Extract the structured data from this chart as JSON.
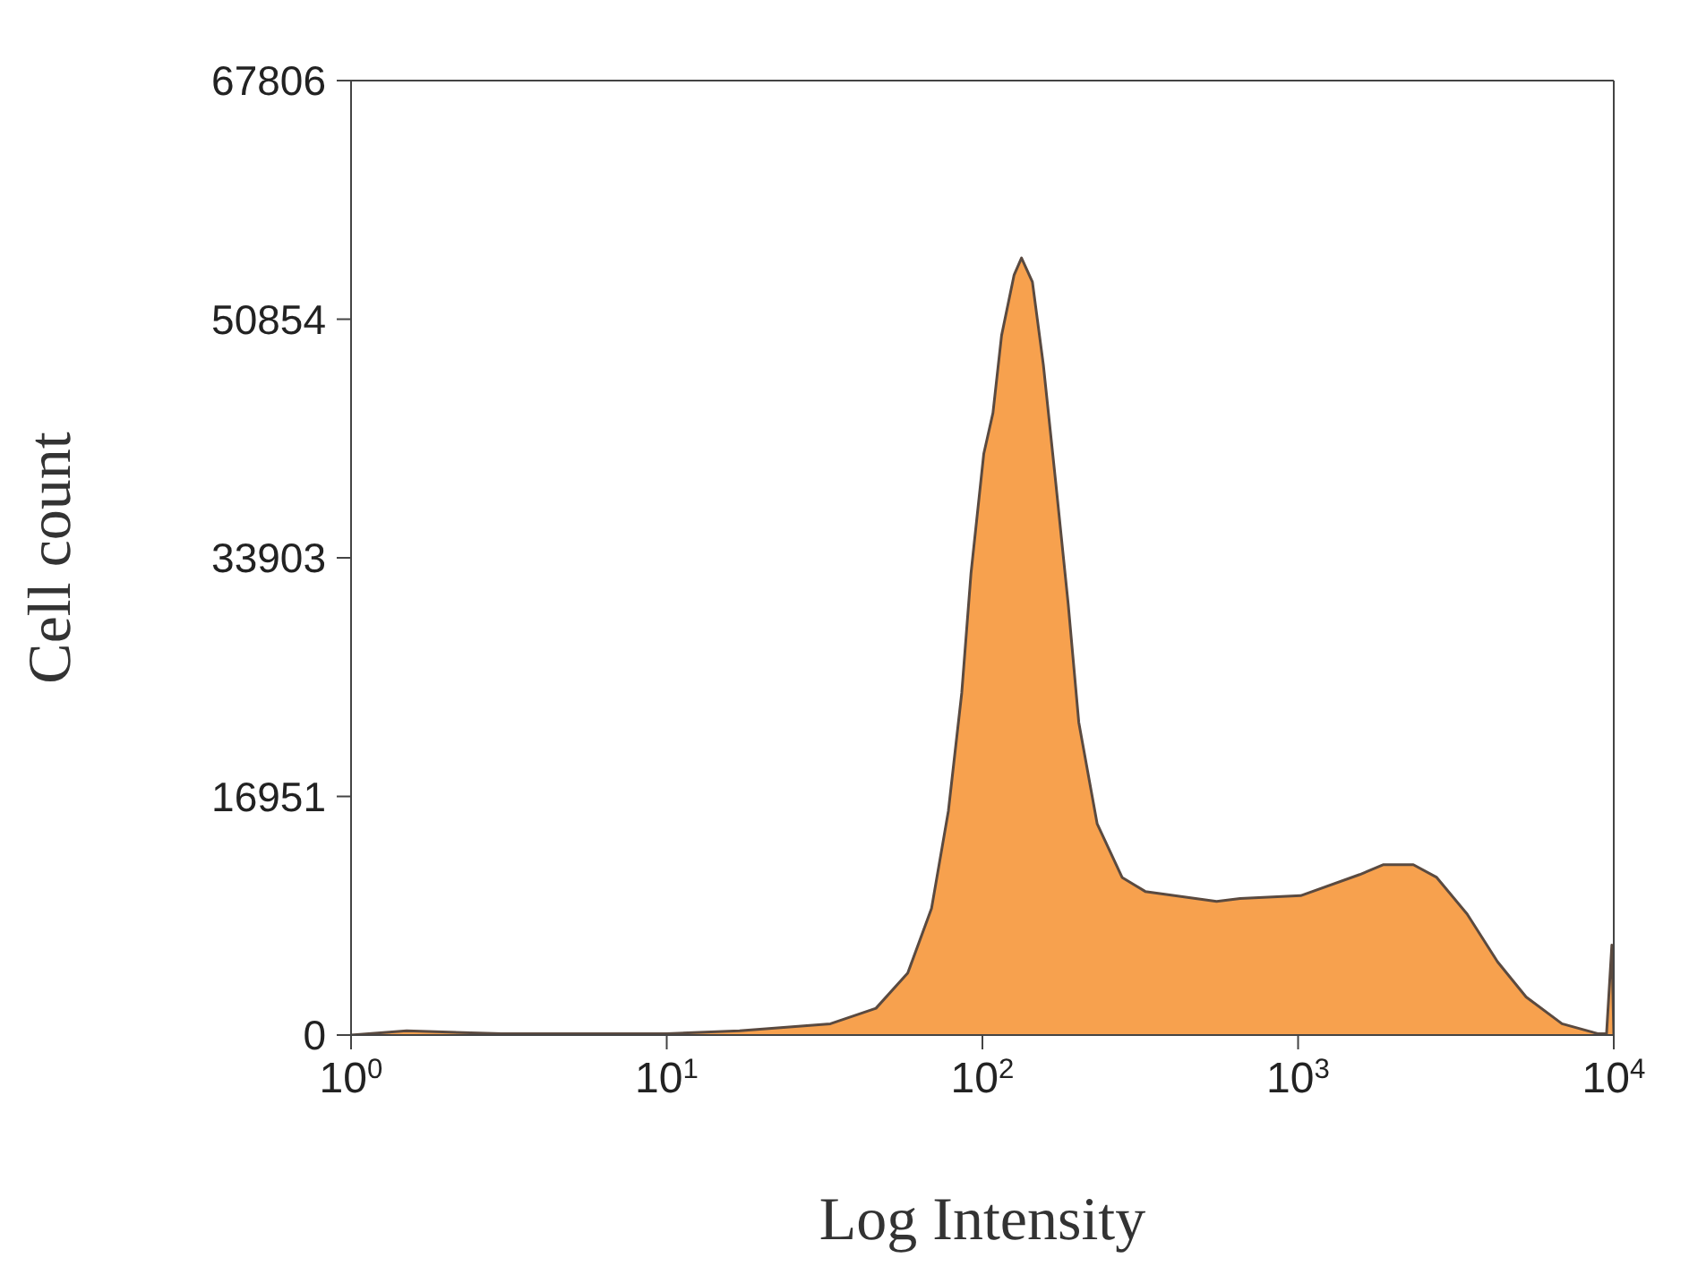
{
  "chart_data": {
    "type": "area",
    "xlabel": "Log Intensity",
    "ylabel": "Cell count",
    "log": "x",
    "marker": "none",
    "xlim": [
      1,
      10000
    ],
    "ylim": [
      0,
      67806
    ],
    "xticks": [
      {
        "value": 1,
        "label": "10$^{0}$"
      },
      {
        "value": 10,
        "label": "10$^{1}$"
      },
      {
        "value": 100,
        "label": "10$^{2}$"
      },
      {
        "value": 1000,
        "label": "10$^{3}$"
      },
      {
        "value": 10000,
        "label": "10$^{4}$"
      }
    ],
    "yticks": [
      0,
      16951,
      33903,
      50854,
      67806
    ],
    "series": [
      {
        "color": "#f7a14e",
        "x": [
          1,
          1.5,
          3,
          10,
          17,
          33,
          46,
          58,
          69,
          78,
          86,
          92,
          101,
          108,
          115,
          126,
          133,
          144,
          156,
          171,
          187,
          202,
          231,
          277,
          328,
          552,
          655,
          1019,
          1567,
          1858,
          2318,
          2748,
          3430,
          4285,
          5277,
          6855,
          8892,
          9486,
          9862,
          10000
        ],
        "values": [
          0,
          300,
          100,
          100,
          300,
          800,
          1900,
          4400,
          9000,
          15900,
          24300,
          32800,
          41300,
          44200,
          49700,
          54000,
          55200,
          53500,
          47600,
          39100,
          30600,
          22200,
          15000,
          11200,
          10200,
          9500,
          9700,
          9900,
          11400,
          12100,
          12100,
          11200,
          8600,
          5200,
          2700,
          800,
          100,
          100,
          6400,
          0
        ]
      }
    ]
  }
}
